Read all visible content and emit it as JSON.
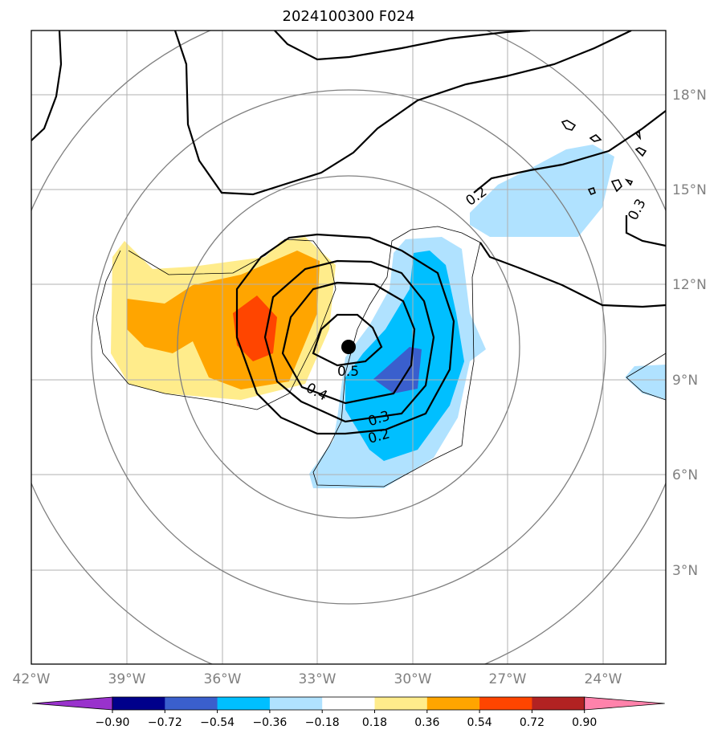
{
  "chart_data": {
    "type": "map_contour",
    "title": "2024100300 F024",
    "x_ticks": [
      "42°W",
      "39°W",
      "36°W",
      "33°W",
      "30°W",
      "27°W",
      "24°W"
    ],
    "y_ticks": [
      "18°N",
      "15°N",
      "12°N",
      "9°N",
      "6°N",
      "3°N"
    ],
    "lon_range": [
      -42,
      -22
    ],
    "lat_range": [
      0,
      20
    ],
    "grid": true,
    "center_marker": {
      "lon": -32,
      "lat": 10
    },
    "contour_lines": [
      {
        "level": 0.2,
        "label": "0.2"
      },
      {
        "level": 0.3,
        "label": "0.3"
      },
      {
        "level": 0.4,
        "label": "0.4"
      },
      {
        "level": 0.5,
        "label": "0.5"
      }
    ],
    "ring_labels": {
      "top_right_1": "0.2",
      "top_right_2": "0.3"
    },
    "colorbar": {
      "ticks": [
        "−0.90",
        "−0.72",
        "−0.54",
        "−0.36",
        "−0.18",
        "0.18",
        "0.36",
        "0.54",
        "0.72",
        "0.90"
      ],
      "colors": [
        "#9932cc",
        "#00008b",
        "#3a5fcd",
        "#00bfff",
        "#b0e2ff",
        "#ffffff",
        "#ffec8b",
        "#ffa500",
        "#ff4500",
        "#b22222",
        "#ff82ab"
      ],
      "extend": "both"
    }
  }
}
